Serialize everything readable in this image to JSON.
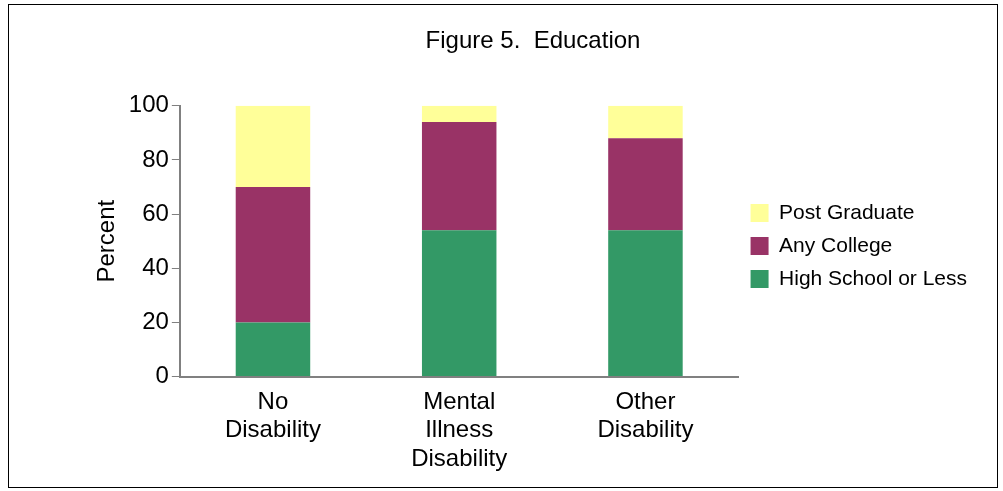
{
  "chart_data": {
    "type": "bar",
    "title": "Figure 5.  Education",
    "ylabel": "Percent",
    "categories": [
      "No Disability",
      "Mental Illness Disability",
      "Other Disability"
    ],
    "series": [
      {
        "name": "High School or Less",
        "color": "#339966",
        "values": [
          20,
          54,
          54
        ]
      },
      {
        "name": "Any College",
        "color": "#993366",
        "values": [
          50,
          40,
          34
        ]
      },
      {
        "name": "Post Graduate",
        "color": "#ffff99",
        "values": [
          30,
          6,
          12
        ]
      }
    ],
    "stacked": true,
    "ylim": [
      0,
      100
    ],
    "yticks": [
      0,
      20,
      40,
      60,
      80,
      100
    ],
    "grid": false,
    "legend": "right"
  }
}
